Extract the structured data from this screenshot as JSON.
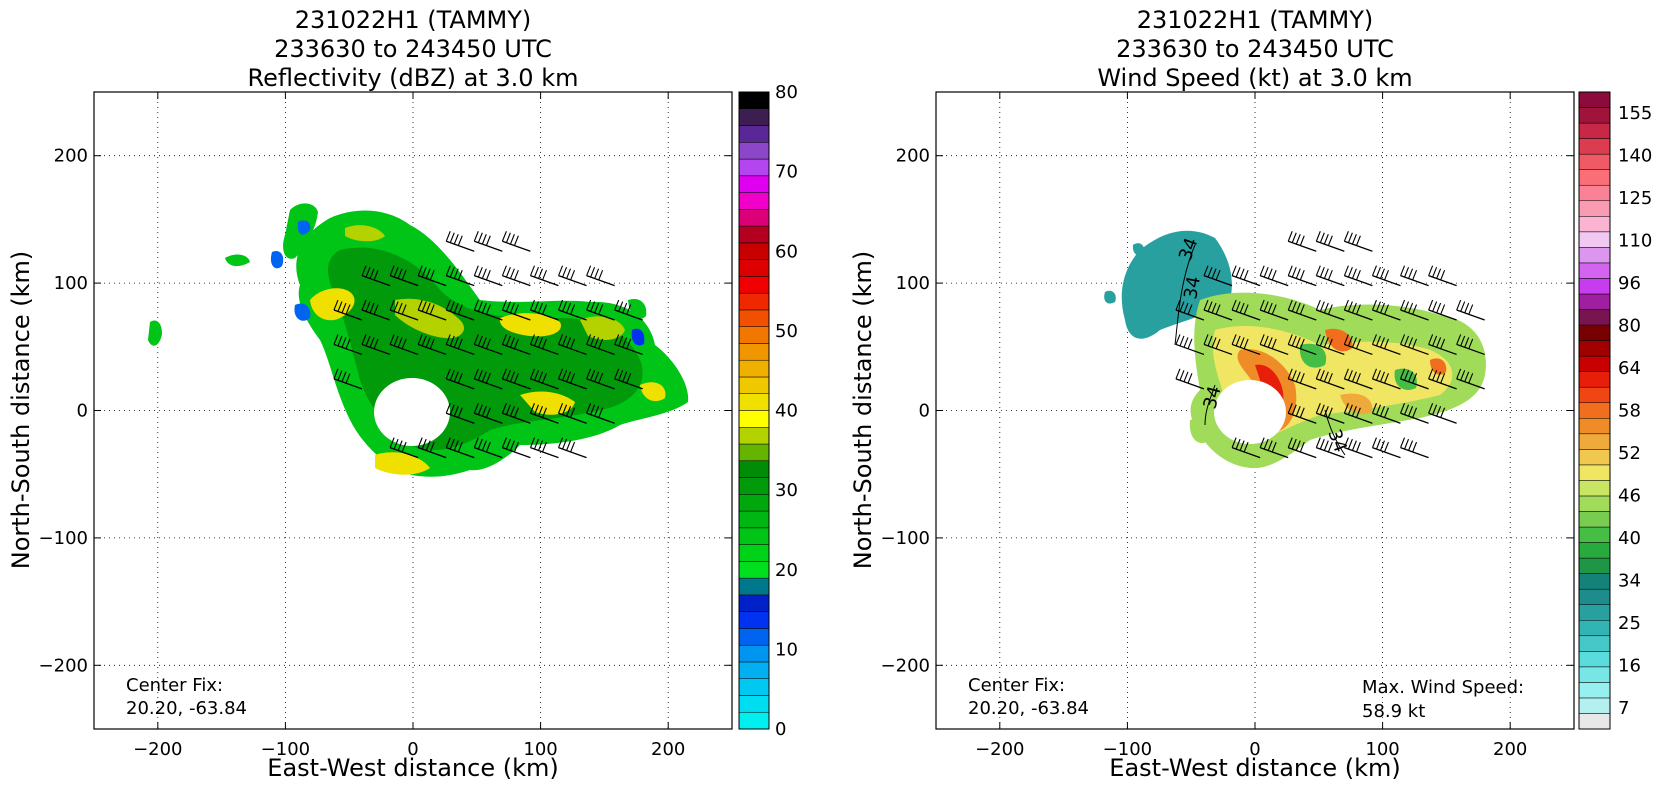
{
  "panels": [
    {
      "title_lines": [
        "231022H1 (TAMMY)",
        "233630 to 243450 UTC",
        "Reflectivity (dBZ) at 3.0 km"
      ],
      "center_fix_label": "Center Fix:",
      "center_fix_value": "20.20, -63.84",
      "max_wind_label": "",
      "max_wind_value": "",
      "colorbar": {
        "levels": 32,
        "tick_values": [
          0,
          10,
          20,
          30,
          40,
          50,
          60,
          70,
          80
        ],
        "tick_labels": [
          "0",
          "10",
          "20",
          "30",
          "40",
          "50",
          "60",
          "70",
          "80"
        ],
        "colors": [
          "#00f0f0",
          "#00dcf0",
          "#00c8f0",
          "#00b0f0",
          "#0096f0",
          "#0064f0",
          "#0032f0",
          "#0020c8",
          "#00788c",
          "#00e01e",
          "#00d21a",
          "#00c416",
          "#00b612",
          "#00a80e",
          "#009a0a",
          "#008c06",
          "#64b400",
          "#b4d200",
          "#ffff00",
          "#f0e000",
          "#f0c800",
          "#f0b000",
          "#f09600",
          "#f07800",
          "#f05000",
          "#f02800",
          "#f00000",
          "#dc0000",
          "#c80000",
          "#b4001e",
          "#dc0078",
          "#f000c8",
          "#e000f0",
          "#b446f0",
          "#8c46c8",
          "#5a2896",
          "#3c1e50",
          "#000000"
        ]
      }
    },
    {
      "title_lines": [
        "231022H1 (TAMMY)",
        "233630 to 243450 UTC",
        "Wind Speed (kt) at 3.0 km"
      ],
      "center_fix_label": "Center Fix:",
      "center_fix_value": "20.20, -63.84",
      "max_wind_label": "Max. Wind Speed:",
      "max_wind_value": "58.9 kt",
      "contour_label": "34",
      "colorbar": {
        "levels": 36,
        "tick_labels": [
          "7",
          "16",
          "25",
          "34",
          "40",
          "46",
          "52",
          "58",
          "64",
          "80",
          "96",
          "110",
          "125",
          "140",
          "155"
        ],
        "colors": [
          "#e8e8e8",
          "#b4f0f0",
          "#96f0f0",
          "#78e6e6",
          "#5adcdc",
          "#46c8c8",
          "#32b4b4",
          "#28a0a0",
          "#1e8c8c",
          "#148278",
          "#1e9646",
          "#28aa3c",
          "#46be46",
          "#78cd50",
          "#a0dc5a",
          "#c8e664",
          "#f0e664",
          "#f0c850",
          "#f0aa3c",
          "#f08c28",
          "#f06e1e",
          "#f04614",
          "#e61e0a",
          "#c80000",
          "#a00000",
          "#780000",
          "#781450",
          "#a01ea0",
          "#c83cf0",
          "#d264f0",
          "#dc96f0",
          "#f0c8f0",
          "#fab4d2",
          "#fa9bb4",
          "#fa8296",
          "#fa6e78",
          "#f05a64",
          "#dc3c50",
          "#c82846",
          "#a0143c",
          "#8c0a3c"
        ]
      },
      "annotations": {
        "max_wind_value_num": 58.9
      }
    }
  ],
  "chart_data": [
    {
      "type": "heatmap",
      "title": "231022H1 (TAMMY) 233630 to 243450 UTC Reflectivity (dBZ) at 3.0 km",
      "xlabel": "East-West distance (km)",
      "ylabel": "North-South distance (km)",
      "xlim": [
        -250,
        250
      ],
      "ylim": [
        -250,
        250
      ],
      "xticks": [
        -200,
        -100,
        0,
        100,
        200
      ],
      "yticks": [
        -200,
        -100,
        0,
        100,
        200
      ],
      "xtick_labels": [
        "−200",
        "−100",
        "0",
        "100",
        "200"
      ],
      "ytick_labels": [
        "−200",
        "−100",
        "0",
        "100",
        "200"
      ],
      "grid": true,
      "colorbar_range": [
        0,
        80
      ],
      "colorbar_label": "dBZ"
    },
    {
      "type": "heatmap",
      "title": "231022H1 (TAMMY) 233630 to 243450 UTC Wind Speed (kt) at 3.0 km",
      "xlabel": "East-West distance (km)",
      "ylabel": "North-South distance (km)",
      "xlim": [
        -250,
        250
      ],
      "ylim": [
        -250,
        250
      ],
      "xticks": [
        -200,
        -100,
        0,
        100,
        200
      ],
      "yticks": [
        -200,
        -100,
        0,
        100,
        200
      ],
      "xtick_labels": [
        "−200",
        "−100",
        "0",
        "100",
        "200"
      ],
      "ytick_labels": [
        "−200",
        "−100",
        "0",
        "100",
        "200"
      ],
      "grid": true,
      "colorbar_ticks": [
        7,
        16,
        25,
        34,
        40,
        46,
        52,
        58,
        64,
        80,
        96,
        110,
        125,
        140,
        155
      ],
      "max_wind_speed_kt": 58.9,
      "contour_level_kt": 34
    }
  ]
}
